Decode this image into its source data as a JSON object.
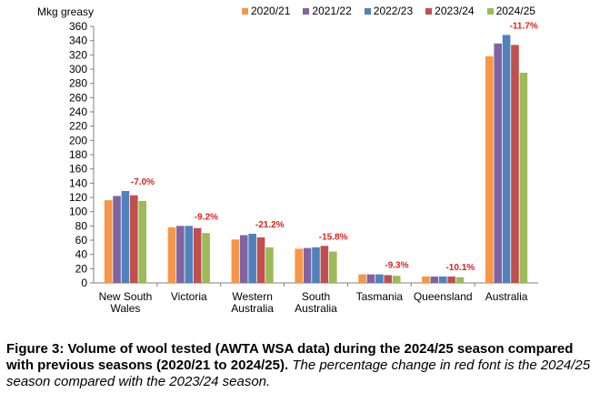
{
  "chart_data": {
    "type": "bar",
    "ylabel": "Mkg greasy",
    "ylim": [
      0,
      360
    ],
    "ytick_step": 20,
    "grid": false,
    "legend_position": "top",
    "categories": [
      "New South\nWales",
      "Victoria",
      "Western\nAustralia",
      "South\nAustralia",
      "Tasmania",
      "Queensland",
      "Australia"
    ],
    "series": [
      {
        "name": "2020/21",
        "color": "#F79646",
        "values": [
          116,
          78,
          61,
          48,
          12,
          9,
          318
        ]
      },
      {
        "name": "2021/22",
        "color": "#8064A2",
        "values": [
          122,
          80,
          67,
          49,
          12,
          9,
          336
        ]
      },
      {
        "name": "2022/23",
        "color": "#4F81BD",
        "values": [
          129,
          80,
          69,
          50,
          12,
          9,
          348
        ]
      },
      {
        "name": "2023/24",
        "color": "#C0504D",
        "values": [
          123,
          77,
          64,
          52,
          11,
          9,
          334
        ]
      },
      {
        "name": "2024/25",
        "color": "#9BBB59",
        "values": [
          115,
          70,
          50,
          44,
          10,
          8,
          295
        ]
      }
    ],
    "annotations": [
      "-7.0%",
      "-9.2%",
      "-21.2%",
      "-15.8%",
      "-9.3%",
      "-10.1%",
      "-11.7%"
    ],
    "annotation_color": "#E02020"
  },
  "caption": {
    "bold": "Figure 3: Volume of wool tested (AWTA WSA data) during the 2024/25 season compared with previous seasons (2020/21 to 2024/25).",
    "italic": " The percentage change in red font is the 2024/25 season compared with the 2023/24 season."
  }
}
